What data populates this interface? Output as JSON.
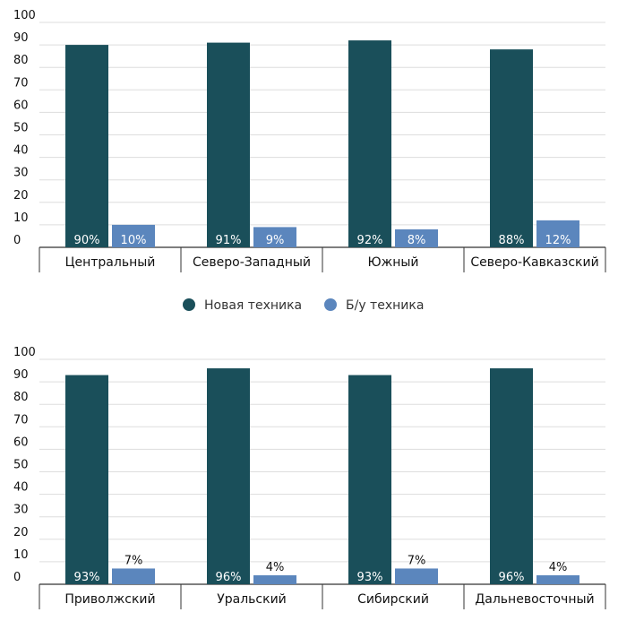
{
  "colors": {
    "new": "#1a4f5a",
    "used": "#5b86bd",
    "grid": "#dddddd",
    "axis": "#333333"
  },
  "legend": {
    "new_label": "Новая техника",
    "used_label": "Б/у техника"
  },
  "chart_data": [
    {
      "type": "bar",
      "categories": [
        "Центральный",
        "Северо-Западный",
        "Южный",
        "Северо-Кавказский"
      ],
      "series": [
        {
          "name": "Новая техника",
          "values": [
            90,
            91,
            92,
            88
          ],
          "labels": [
            "90%",
            "91%",
            "92%",
            "88%"
          ]
        },
        {
          "name": "Б/у техника",
          "values": [
            10,
            9,
            8,
            12
          ],
          "labels": [
            "10%",
            "9%",
            "8%",
            "12%"
          ]
        }
      ],
      "ylim": [
        0,
        100
      ],
      "yticks": [
        "0",
        "10",
        "20",
        "30",
        "40",
        "50",
        "60",
        "70",
        "80",
        "90",
        "100"
      ],
      "grid": true
    },
    {
      "type": "bar",
      "categories": [
        "Приволжский",
        "Уральский",
        "Сибирский",
        "Дальневосточный"
      ],
      "series": [
        {
          "name": "Новая техника",
          "values": [
            93,
            96,
            93,
            96
          ],
          "labels": [
            "93%",
            "96%",
            "93%",
            "96%"
          ]
        },
        {
          "name": "Б/у техника",
          "values": [
            7,
            4,
            7,
            4
          ],
          "labels": [
            "7%",
            "4%",
            "7%",
            "4%"
          ]
        }
      ],
      "ylim": [
        0,
        100
      ],
      "yticks": [
        "0",
        "10",
        "20",
        "30",
        "40",
        "50",
        "60",
        "70",
        "80",
        "90",
        "100"
      ],
      "grid": true
    }
  ]
}
